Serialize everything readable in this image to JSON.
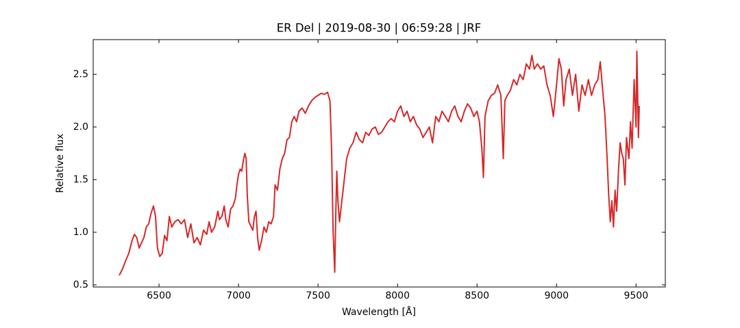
{
  "chart_data": {
    "type": "line",
    "title": "ER Del | 2019-08-30 | 06:59:28 | JRF",
    "xlabel": "Wavelength [Å]",
    "ylabel": "Relative flux",
    "color": "#d62728",
    "xlim": [
      6086,
      9684
    ],
    "ylim": [
      0.48,
      2.83
    ],
    "xticks": [
      6500,
      7000,
      7500,
      8000,
      8500,
      9000,
      9500
    ],
    "yticks": [
      0.5,
      {
        "value": 1.0,
        "label": "1.0"
      },
      1.5,
      {
        "value": 2.0,
        "label": "2.0"
      },
      2.5
    ],
    "x": [
      6250,
      6270,
      6290,
      6310,
      6330,
      6345,
      6360,
      6375,
      6390,
      6405,
      6420,
      6435,
      6450,
      6465,
      6478,
      6490,
      6505,
      6520,
      6535,
      6550,
      6565,
      6580,
      6600,
      6620,
      6640,
      6660,
      6680,
      6700,
      6720,
      6740,
      6760,
      6780,
      6800,
      6815,
      6830,
      6850,
      6870,
      6880,
      6895,
      6910,
      6920,
      6935,
      6950,
      6965,
      6980,
      6990,
      7000,
      7010,
      7020,
      7030,
      7040,
      7048,
      7055,
      7065,
      7080,
      7090,
      7100,
      7110,
      7120,
      7130,
      7145,
      7160,
      7175,
      7190,
      7205,
      7220,
      7230,
      7245,
      7260,
      7275,
      7290,
      7305,
      7320,
      7335,
      7350,
      7365,
      7380,
      7400,
      7420,
      7440,
      7460,
      7480,
      7500,
      7520,
      7540,
      7560,
      7575,
      7585,
      7595,
      7605,
      7612,
      7618,
      7625,
      7635,
      7650,
      7665,
      7680,
      7700,
      7720,
      7740,
      7760,
      7780,
      7800,
      7820,
      7840,
      7860,
      7880,
      7900,
      7920,
      7940,
      7960,
      7980,
      8000,
      8020,
      8040,
      8060,
      8080,
      8100,
      8120,
      8140,
      8160,
      8180,
      8200,
      8220,
      8240,
      8260,
      8280,
      8300,
      8320,
      8340,
      8360,
      8380,
      8400,
      8420,
      8440,
      8460,
      8480,
      8500,
      8515,
      8530,
      8540,
      8550,
      8570,
      8590,
      8610,
      8630,
      8650,
      8665,
      8675,
      8690,
      8710,
      8730,
      8750,
      8770,
      8790,
      8810,
      8830,
      8845,
      8860,
      8880,
      8900,
      8920,
      8940,
      8960,
      8980,
      9000,
      9015,
      9030,
      9045,
      9060,
      9080,
      9100,
      9120,
      9140,
      9160,
      9180,
      9200,
      9220,
      9240,
      9260,
      9275,
      9290,
      9305,
      9318,
      9328,
      9338,
      9348,
      9358,
      9368,
      9378,
      9390,
      9400,
      9410,
      9420,
      9430,
      9440,
      9455,
      9465,
      9475,
      9488,
      9500,
      9505,
      9515,
      9520
    ],
    "values": [
      0.59,
      0.65,
      0.73,
      0.8,
      0.92,
      0.98,
      0.95,
      0.85,
      0.9,
      0.95,
      1.05,
      1.08,
      1.18,
      1.25,
      1.15,
      0.85,
      0.77,
      0.8,
      0.97,
      0.92,
      1.15,
      1.05,
      1.1,
      1.12,
      1.08,
      1.12,
      0.95,
      1.08,
      0.9,
      0.95,
      0.88,
      1.02,
      0.98,
      1.1,
      1.0,
      1.05,
      1.2,
      1.12,
      1.15,
      1.25,
      1.12,
      1.05,
      1.22,
      1.25,
      1.32,
      1.45,
      1.55,
      1.6,
      1.58,
      1.68,
      1.75,
      1.7,
      1.35,
      1.1,
      1.05,
      1.02,
      1.15,
      1.2,
      0.95,
      0.83,
      0.92,
      1.05,
      1.0,
      1.1,
      1.08,
      1.15,
      1.45,
      1.4,
      1.6,
      1.7,
      1.75,
      1.88,
      1.9,
      2.05,
      2.1,
      2.05,
      2.15,
      2.18,
      2.13,
      2.2,
      2.25,
      2.28,
      2.3,
      2.32,
      2.31,
      2.33,
      2.25,
      1.8,
      1.0,
      0.62,
      1.2,
      1.58,
      1.3,
      1.1,
      1.3,
      1.5,
      1.7,
      1.8,
      1.85,
      1.95,
      1.88,
      1.85,
      1.95,
      1.92,
      1.98,
      2.0,
      1.93,
      1.95,
      2.0,
      2.05,
      2.08,
      2.05,
      2.15,
      2.2,
      2.1,
      2.15,
      2.05,
      2.1,
      2.02,
      1.98,
      1.9,
      1.95,
      2.0,
      1.85,
      2.1,
      2.05,
      2.15,
      2.1,
      2.05,
      2.15,
      2.2,
      2.1,
      2.05,
      2.15,
      2.22,
      2.18,
      2.1,
      2.15,
      2.05,
      1.8,
      1.52,
      2.1,
      2.25,
      2.3,
      2.32,
      2.4,
      2.3,
      1.7,
      2.25,
      2.3,
      2.35,
      2.45,
      2.4,
      2.5,
      2.45,
      2.6,
      2.55,
      2.68,
      2.55,
      2.6,
      2.55,
      2.58,
      2.4,
      2.3,
      2.1,
      2.4,
      2.65,
      2.55,
      2.2,
      2.45,
      2.55,
      2.3,
      2.5,
      2.15,
      2.4,
      2.3,
      2.45,
      2.3,
      2.4,
      2.45,
      2.62,
      2.35,
      2.1,
      1.7,
      1.35,
      1.1,
      1.3,
      1.05,
      1.4,
      1.2,
      1.6,
      1.85,
      1.75,
      1.7,
      1.45,
      1.9,
      1.7,
      2.05,
      1.8,
      2.45,
      2.0,
      2.72,
      1.9,
      2.2
    ]
  }
}
